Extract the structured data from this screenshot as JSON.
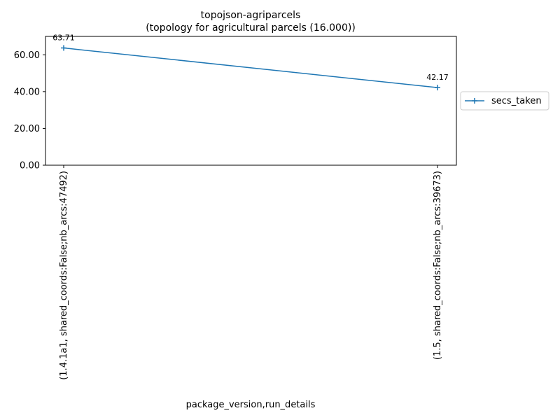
{
  "chart_data": {
    "type": "line",
    "title": "topojson-agriparcels",
    "subtitle": "(topology for agricultural parcels (16.000))",
    "xlabel": "package_version,run_details",
    "ylabel": "",
    "categories": [
      "(1.4.1a1, shared_coords:False;nb_arcs:47492)",
      "(1.5, shared_coords:False;nb_arcs:39673)"
    ],
    "series": [
      {
        "name": "secs_taken",
        "values": [
          63.71,
          42.17
        ],
        "labels": [
          "63.71",
          "42.17"
        ],
        "color": "#1f77b4",
        "marker": "plus"
      }
    ],
    "yticks": [
      "0.00",
      "20.00",
      "40.00",
      "60.00"
    ],
    "ytick_values": [
      0,
      20,
      40,
      60
    ],
    "ylim": [
      0,
      70
    ],
    "grid": false,
    "legend_position": "right-outside"
  }
}
